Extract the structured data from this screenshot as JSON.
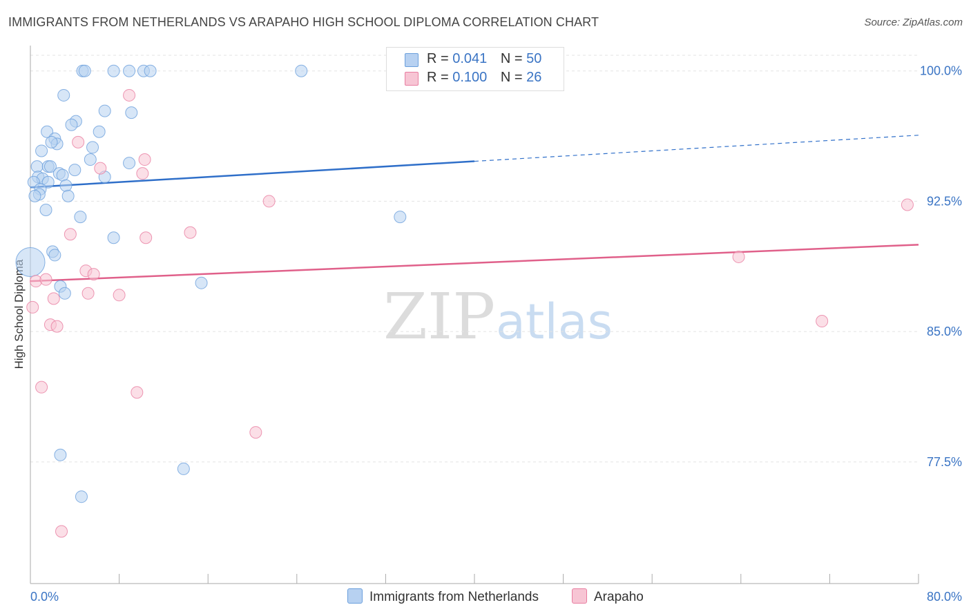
{
  "header": {
    "title": "IMMIGRANTS FROM NETHERLANDS VS ARAPAHO HIGH SCHOOL DIPLOMA CORRELATION CHART",
    "source": "Source: ZipAtlas.com"
  },
  "watermark": {
    "zip": "ZIP",
    "atlas": "atlas"
  },
  "legend_top": {
    "rows": [
      {
        "r_label": "R =",
        "r_value": "0.041",
        "n_label": "N =",
        "n_value": "50"
      },
      {
        "r_label": "R =",
        "r_value": "0.100",
        "n_label": "N =",
        "n_value": "26"
      }
    ]
  },
  "chart_data": {
    "type": "scatter",
    "title": "IMMIGRANTS FROM NETHERLANDS VS ARAPAHO HIGH SCHOOL DIPLOMA CORRELATION CHART",
    "xlabel": "",
    "ylabel": "High School Diploma",
    "xlim": [
      0,
      80
    ],
    "ylim": [
      70.5,
      101.3
    ],
    "x_tick_labels": [
      "0.0%",
      "80.0%"
    ],
    "y_ticks": [
      77.5,
      85.0,
      92.5,
      100.0
    ],
    "y_tick_labels": [
      "77.5%",
      "85.0%",
      "92.5%",
      "100.0%"
    ],
    "grid": true,
    "legend_position": "bottom-center",
    "series": [
      {
        "name": "Immigrants from Netherlands",
        "color": "#6a9fdc",
        "fill": "#b7d1f1",
        "r": "0.041",
        "n": "50",
        "trend": {
          "x0": 0,
          "y0": 93.3,
          "x1": 40,
          "y1": 94.8,
          "dashed_to_x": 80,
          "dashed_to_y": 96.3
        },
        "points": [
          [
            4.7,
            100.0
          ],
          [
            4.9,
            100.0
          ],
          [
            7.5,
            100.0
          ],
          [
            8.9,
            100.0
          ],
          [
            10.2,
            100.0
          ],
          [
            10.8,
            100.0
          ],
          [
            24.4,
            100.0
          ],
          [
            3.0,
            98.6
          ],
          [
            6.7,
            97.7
          ],
          [
            9.1,
            97.6
          ],
          [
            4.1,
            97.1
          ],
          [
            3.7,
            96.9
          ],
          [
            6.2,
            96.5
          ],
          [
            1.5,
            96.5
          ],
          [
            2.2,
            96.1
          ],
          [
            2.4,
            95.8
          ],
          [
            1.9,
            95.9
          ],
          [
            5.6,
            95.6
          ],
          [
            1.0,
            95.4
          ],
          [
            5.4,
            94.9
          ],
          [
            8.9,
            94.7
          ],
          [
            0.6,
            94.5
          ],
          [
            1.6,
            94.5
          ],
          [
            1.8,
            94.5
          ],
          [
            4.0,
            94.3
          ],
          [
            2.6,
            94.1
          ],
          [
            2.9,
            94.0
          ],
          [
            0.7,
            93.9
          ],
          [
            6.7,
            93.9
          ],
          [
            1.1,
            93.8
          ],
          [
            0.3,
            93.6
          ],
          [
            1.6,
            93.6
          ],
          [
            3.2,
            93.4
          ],
          [
            0.9,
            93.2
          ],
          [
            0.8,
            92.9
          ],
          [
            3.4,
            92.8
          ],
          [
            0.4,
            92.8
          ],
          [
            1.4,
            92.0
          ],
          [
            4.5,
            91.6
          ],
          [
            33.3,
            91.6
          ],
          [
            7.5,
            90.4
          ],
          [
            2.0,
            89.6
          ],
          [
            2.2,
            89.4
          ],
          [
            0.0,
            89.0
          ],
          [
            2.7,
            87.6
          ],
          [
            3.1,
            87.2
          ],
          [
            15.4,
            87.8
          ],
          [
            2.7,
            77.9
          ],
          [
            13.8,
            77.1
          ],
          [
            4.6,
            75.5
          ]
        ]
      },
      {
        "name": "Arapaho",
        "color": "#e87da0",
        "fill": "#f7c5d4",
        "r": "0.100",
        "n": "26",
        "trend": {
          "x0": 0,
          "y0": 87.9,
          "x1": 80,
          "y1": 90.0
        },
        "points": [
          [
            8.9,
            98.6
          ],
          [
            4.3,
            95.9
          ],
          [
            10.3,
            94.9
          ],
          [
            6.3,
            94.4
          ],
          [
            10.1,
            94.1
          ],
          [
            21.5,
            92.5
          ],
          [
            79.0,
            92.3
          ],
          [
            3.6,
            90.6
          ],
          [
            10.4,
            90.4
          ],
          [
            14.4,
            90.7
          ],
          [
            63.8,
            89.3
          ],
          [
            5.0,
            88.5
          ],
          [
            5.7,
            88.3
          ],
          [
            0.5,
            87.9
          ],
          [
            1.4,
            88.0
          ],
          [
            5.2,
            87.2
          ],
          [
            8.0,
            87.1
          ],
          [
            2.1,
            86.9
          ],
          [
            0.2,
            86.4
          ],
          [
            71.3,
            85.6
          ],
          [
            1.8,
            85.4
          ],
          [
            2.4,
            85.3
          ],
          [
            1.0,
            81.8
          ],
          [
            9.6,
            81.5
          ],
          [
            20.3,
            79.2
          ],
          [
            2.8,
            73.5
          ]
        ]
      }
    ]
  }
}
